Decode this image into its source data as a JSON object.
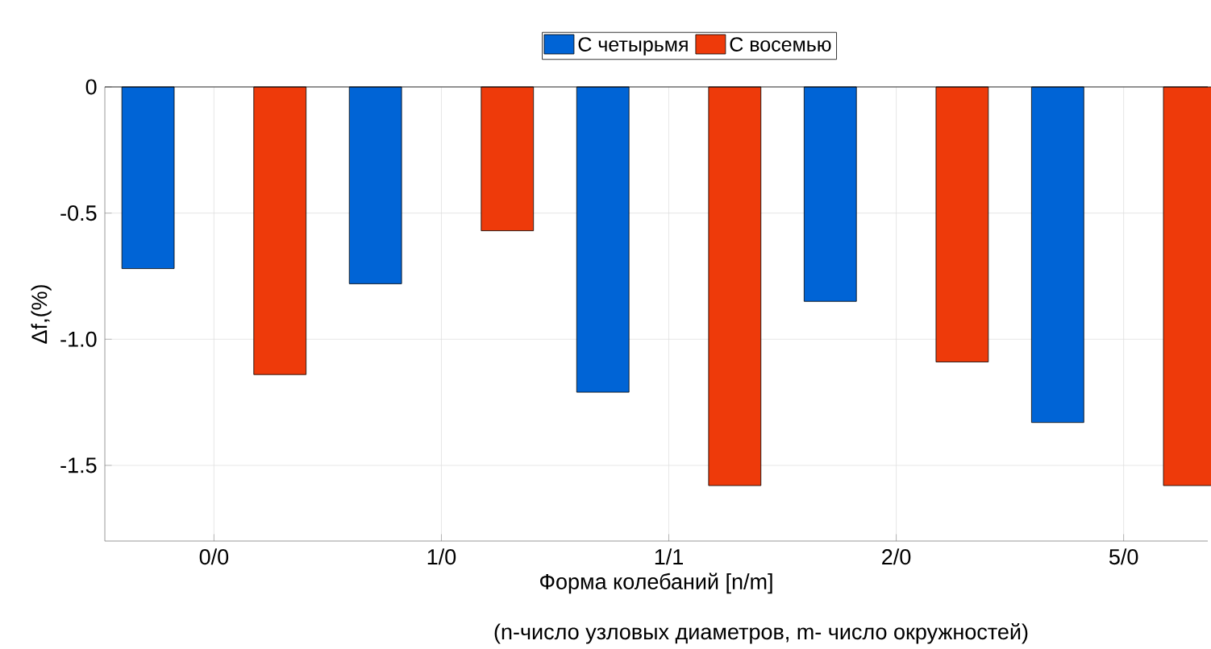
{
  "chart_data": {
    "type": "bar",
    "categories": [
      "0/0",
      "1/0",
      "1/1",
      "2/0",
      "5/0"
    ],
    "series": [
      {
        "name": "С четырьмя",
        "color": "#0064d6",
        "values": [
          -0.72,
          -0.78,
          -1.21,
          -0.85,
          -1.33
        ]
      },
      {
        "name": "С восемью",
        "color": "#ee3a0a",
        "values": [
          -1.14,
          -0.57,
          -1.58,
          -1.09,
          -1.58
        ]
      }
    ],
    "xlabel": "Форма колебаний [n/m]",
    "ylabel": "Δf,(%)",
    "annotations": [
      "(n-число узловых диаметров, m- число окружностей)"
    ],
    "ylim": [
      -1.8,
      0
    ],
    "yticks": [
      0,
      -0.5,
      {
        "value": -1,
        "label": "-1.0"
      },
      -1.5
    ],
    "grid": true,
    "legend": "top"
  }
}
